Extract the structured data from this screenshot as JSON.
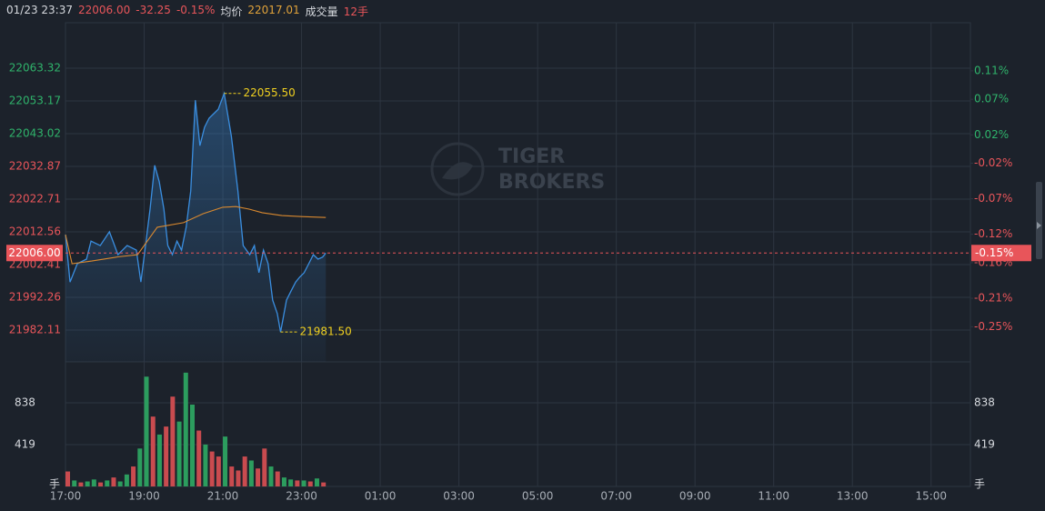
{
  "header": {
    "time": "01/23 23:37",
    "price": "22006.00",
    "change": "-32.25",
    "pct": "-0.15%",
    "avg_label": "均价",
    "avg": "22017.01",
    "vol_label": "成交量",
    "vol": "12手"
  },
  "chart_data": [
    {
      "type": "line",
      "watermark": [
        "TIGER",
        "BROKERS"
      ],
      "xlim": [
        "17:00",
        "16:00"
      ],
      "xticks": [
        "17:00",
        "19:00",
        "21:00",
        "23:00",
        "01:00",
        "03:00",
        "05:00",
        "07:00",
        "09:00",
        "11:00",
        "13:00",
        "15:00"
      ],
      "ylim": [
        21972.24,
        22077.42
      ],
      "yticks": [
        22063.32,
        22053.17,
        22043.02,
        22032.87,
        22022.71,
        22012.56,
        22002.41,
        21992.26,
        21982.11
      ],
      "y2lim": [
        -0.2995,
        0.1777
      ],
      "y2ticks": [
        {
          "value": 0.11,
          "label": "0.11%"
        },
        {
          "value": 0.07,
          "label": "0.07%"
        },
        {
          "value": 0.02,
          "label": "0.02%"
        },
        {
          "value": -0.02,
          "label": "-0.02%"
        },
        {
          "value": -0.07,
          "label": "-0.07%"
        },
        {
          "value": -0.12,
          "label": "-0.12%"
        },
        {
          "value": -0.16,
          "label": "-0.16%"
        },
        {
          "value": -0.21,
          "label": "-0.21%"
        },
        {
          "value": -0.25,
          "label": "-0.25%"
        }
      ],
      "up_color": "#2fb36b",
      "down_color": "#e8555a",
      "grid": true,
      "last": {
        "value": 22006.0,
        "label": "22006.00"
      },
      "last_pct": {
        "value": -0.15,
        "label": "-0.15%"
      },
      "annotations": [
        {
          "x": "21:02",
          "value": 22055.5,
          "label": "22055.50"
        },
        {
          "x": "22:28",
          "value": 21981.5,
          "label": "21981.50"
        }
      ],
      "series": [
        {
          "color": "#3a8ee0",
          "fill": true,
          "x": [
            "17:00",
            "17:07",
            "17:18",
            "17:32",
            "17:39",
            "17:53",
            "18:07",
            "18:20",
            "18:34",
            "18:48",
            "18:55",
            "19:02",
            "19:09",
            "19:16",
            "19:23",
            "19:30",
            "19:36",
            "19:43",
            "19:50",
            "19:57",
            "20:04",
            "20:11",
            "20:18",
            "20:25",
            "20:32",
            "20:39",
            "20:46",
            "20:53",
            "21:02",
            "21:13",
            "21:23",
            "21:31",
            "21:41",
            "21:48",
            "21:55",
            "22:02",
            "22:09",
            "22:16",
            "22:23",
            "22:28",
            "22:37",
            "22:44",
            "22:51",
            "22:57",
            "23:04",
            "23:11",
            "23:18",
            "23:25",
            "23:32",
            "23:37"
          ],
          "values": [
            22011.7,
            21997.0,
            22002.7,
            22004.1,
            22009.7,
            22008.3,
            22012.6,
            22005.5,
            22008.3,
            22006.9,
            21997.0,
            22008.3,
            22019.6,
            22033.2,
            22028.1,
            22019.6,
            22008.3,
            22005.5,
            22009.7,
            22006.9,
            22014.0,
            22025.2,
            22053.4,
            22039.3,
            22045.0,
            22047.8,
            22049.2,
            22050.6,
            22055.5,
            22042.2,
            22025.2,
            22008.3,
            22005.5,
            22008.3,
            21999.9,
            22006.9,
            22002.7,
            21991.4,
            21987.2,
            21981.5,
            21991.4,
            21994.2,
            21997.0,
            21998.5,
            21999.9,
            22002.7,
            22005.5,
            22004.1,
            22004.7,
            22006.0
          ]
        },
        {
          "color": "#d9892f",
          "fill": false,
          "x": [
            "17:00",
            "17:10",
            "17:40",
            "18:20",
            "18:50",
            "19:20",
            "20:00",
            "20:30",
            "21:00",
            "21:20",
            "21:40",
            "22:00",
            "22:30",
            "23:00",
            "23:37"
          ],
          "values": [
            22011.7,
            22002.7,
            22003.5,
            22004.8,
            22005.5,
            22014.0,
            22015.4,
            22018.2,
            22020.2,
            22020.4,
            22019.6,
            22018.5,
            22017.6,
            22017.3,
            22017.01
          ]
        }
      ]
    },
    {
      "type": "bar",
      "unit_label": "手",
      "ylim": [
        0,
        1248
      ],
      "yticks": [
        838,
        419
      ],
      "x": [
        "17:00",
        "17:10",
        "17:20",
        "17:30",
        "17:40",
        "17:50",
        "18:00",
        "18:10",
        "18:20",
        "18:30",
        "18:40",
        "18:50",
        "19:00",
        "19:10",
        "19:20",
        "19:30",
        "19:40",
        "19:50",
        "20:00",
        "20:10",
        "20:20",
        "20:30",
        "20:40",
        "20:50",
        "21:00",
        "21:10",
        "21:20",
        "21:30",
        "21:40",
        "21:50",
        "22:00",
        "22:10",
        "22:20",
        "22:30",
        "22:40",
        "22:50",
        "23:00",
        "23:10",
        "23:20",
        "23:30"
      ],
      "values": [
        150,
        60,
        40,
        50,
        70,
        40,
        60,
        90,
        50,
        120,
        200,
        380,
        1100,
        700,
        520,
        600,
        900,
        650,
        1140,
        820,
        560,
        420,
        350,
        300,
        500,
        200,
        160,
        300,
        260,
        180,
        380,
        200,
        150,
        90,
        70,
        60,
        60,
        50,
        80,
        40
      ],
      "colors": [
        "#c94b4f",
        "#2c9d5e",
        "#c94b4f",
        "#2c9d5e",
        "#2c9d5e",
        "#c94b4f",
        "#2c9d5e",
        "#c94b4f",
        "#2c9d5e",
        "#2c9d5e",
        "#c94b4f",
        "#2c9d5e",
        "#2c9d5e",
        "#c94b4f",
        "#2c9d5e",
        "#c94b4f",
        "#c94b4f",
        "#2c9d5e",
        "#2c9d5e",
        "#2c9d5e",
        "#c94b4f",
        "#2c9d5e",
        "#c94b4f",
        "#c94b4f",
        "#2c9d5e",
        "#c94b4f",
        "#c94b4f",
        "#c94b4f",
        "#2c9d5e",
        "#c94b4f",
        "#c94b4f",
        "#2c9d5e",
        "#c94b4f",
        "#2c9d5e",
        "#2c9d5e",
        "#c94b4f",
        "#2c9d5e",
        "#c94b4f",
        "#2c9d5e",
        "#c94b4f"
      ]
    }
  ]
}
